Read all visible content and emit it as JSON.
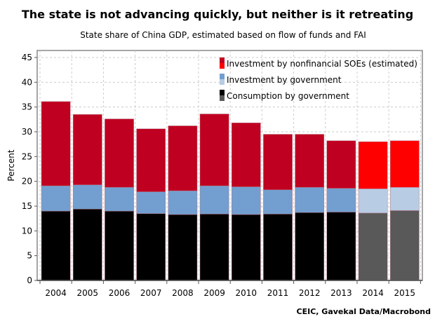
{
  "chart_data": {
    "type": "bar",
    "stacked": true,
    "title": "The state is not advancing quickly, but neither is it retreating",
    "subtitle": "State share of China GDP, estimated based on flow of funds and FAI",
    "ylabel": "Percent",
    "xlabel": "",
    "source": "CEIC, Gavekal Data/Macrobond",
    "ylim": [
      0,
      45
    ],
    "yticks": [
      0,
      5,
      10,
      15,
      20,
      25,
      30,
      35,
      40,
      45
    ],
    "grid": true,
    "legend_position": "top-right",
    "categories": [
      "2004",
      "2005",
      "2006",
      "2007",
      "2008",
      "2009",
      "2010",
      "2011",
      "2012",
      "2013",
      "2014",
      "2015"
    ],
    "estimated_from_index": 10,
    "series": [
      {
        "name": "Consumption by government",
        "color": "#000000",
        "estimated_color": "#595959",
        "values": [
          14.0,
          14.4,
          14.0,
          13.5,
          13.3,
          13.4,
          13.3,
          13.4,
          13.7,
          13.8,
          13.6,
          14.1
        ]
      },
      {
        "name": "Investment by government",
        "color": "#729fcf",
        "estimated_color": "#b8cce4",
        "values": [
          5.1,
          4.9,
          4.8,
          4.4,
          4.8,
          5.7,
          5.6,
          4.9,
          5.1,
          4.8,
          4.9,
          4.7
        ]
      },
      {
        "name": "Investment by nonfinancial SOEs (estimated)",
        "color": "#c00020",
        "estimated_color": "#ff0000",
        "values": [
          17.0,
          14.2,
          13.8,
          12.7,
          13.1,
          14.5,
          12.9,
          11.2,
          10.7,
          9.6,
          9.5,
          9.4
        ]
      }
    ]
  }
}
